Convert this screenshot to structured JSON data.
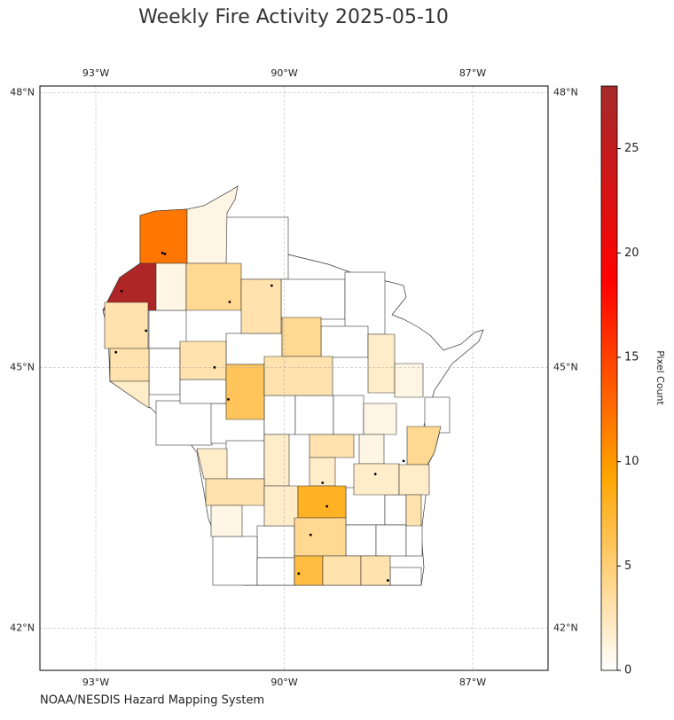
{
  "chart_data": {
    "type": "choropleth",
    "title": "Weekly Fire Activity 2025-05-10",
    "source": "NOAA/NESDIS Hazard Mapping System",
    "xlim": [
      -93.89,
      -85.8
    ],
    "ylim": [
      41.5,
      48.07
    ],
    "xticks": [
      {
        "value": -93,
        "label": "93°W"
      },
      {
        "value": -90,
        "label": "90°W"
      },
      {
        "value": -87,
        "label": "87°W"
      }
    ],
    "yticks": [
      {
        "value": 42,
        "label": "42°N"
      },
      {
        "value": 45,
        "label": "45°N"
      },
      {
        "value": 48,
        "label": "48°N"
      }
    ],
    "grid": true,
    "region_values": [
      12,
      1,
      27,
      1,
      4,
      3,
      3,
      3,
      2,
      3,
      6,
      4,
      3,
      2,
      1,
      1,
      4,
      1,
      3,
      2,
      2,
      2,
      3,
      1,
      2,
      8,
      2,
      2,
      3,
      4,
      7,
      3,
      3
    ],
    "fire_points": {
      "x": [
        -92.59,
        -91.94,
        -91.9,
        -90.2,
        -90.89,
        -89.32,
        -89.77,
        -89.58,
        -91.11,
        -92.68,
        -92.2,
        -88.1,
        -88.55,
        -89.39,
        -88.35,
        -90.87
      ],
      "y": [
        45.85,
        46.27,
        46.26,
        45.91,
        44.64,
        43.42,
        42.64,
        43.09,
        45.0,
        45.17,
        45.41,
        43.94,
        43.79,
        43.69,
        42.56,
        45.73
      ]
    },
    "colorbar": {
      "label": "Pixel Count",
      "lim": [
        0,
        28
      ],
      "ticks": [
        0,
        5,
        10,
        15,
        20,
        25
      ],
      "colormap": [
        "#ffffff",
        "#ffa500",
        "#ff0000",
        "#a52a2a"
      ]
    }
  }
}
